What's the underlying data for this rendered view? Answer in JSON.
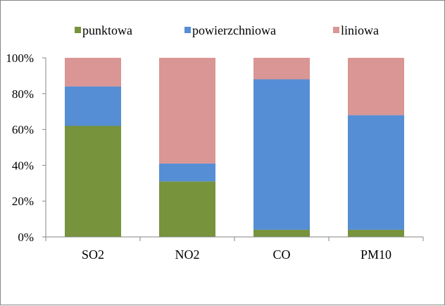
{
  "chart_data": {
    "type": "bar",
    "stacked": "percent",
    "categories": [
      "SO2",
      "NO2",
      "CO",
      "PM10"
    ],
    "series": [
      {
        "name": "punktowa",
        "color": "#77933c",
        "values": [
          62,
          31,
          4,
          4
        ]
      },
      {
        "name": "powierzchniowa",
        "color": "#558ed5",
        "values": [
          22,
          10,
          84,
          64
        ]
      },
      {
        "name": "liniowa",
        "color": "#d99694",
        "values": [
          16,
          59,
          12,
          32
        ]
      }
    ],
    "yticks": [
      "0%",
      "20%",
      "40%",
      "60%",
      "80%",
      "100%"
    ],
    "ylim": [
      0,
      100
    ],
    "legend_position": "top",
    "grid": false
  }
}
